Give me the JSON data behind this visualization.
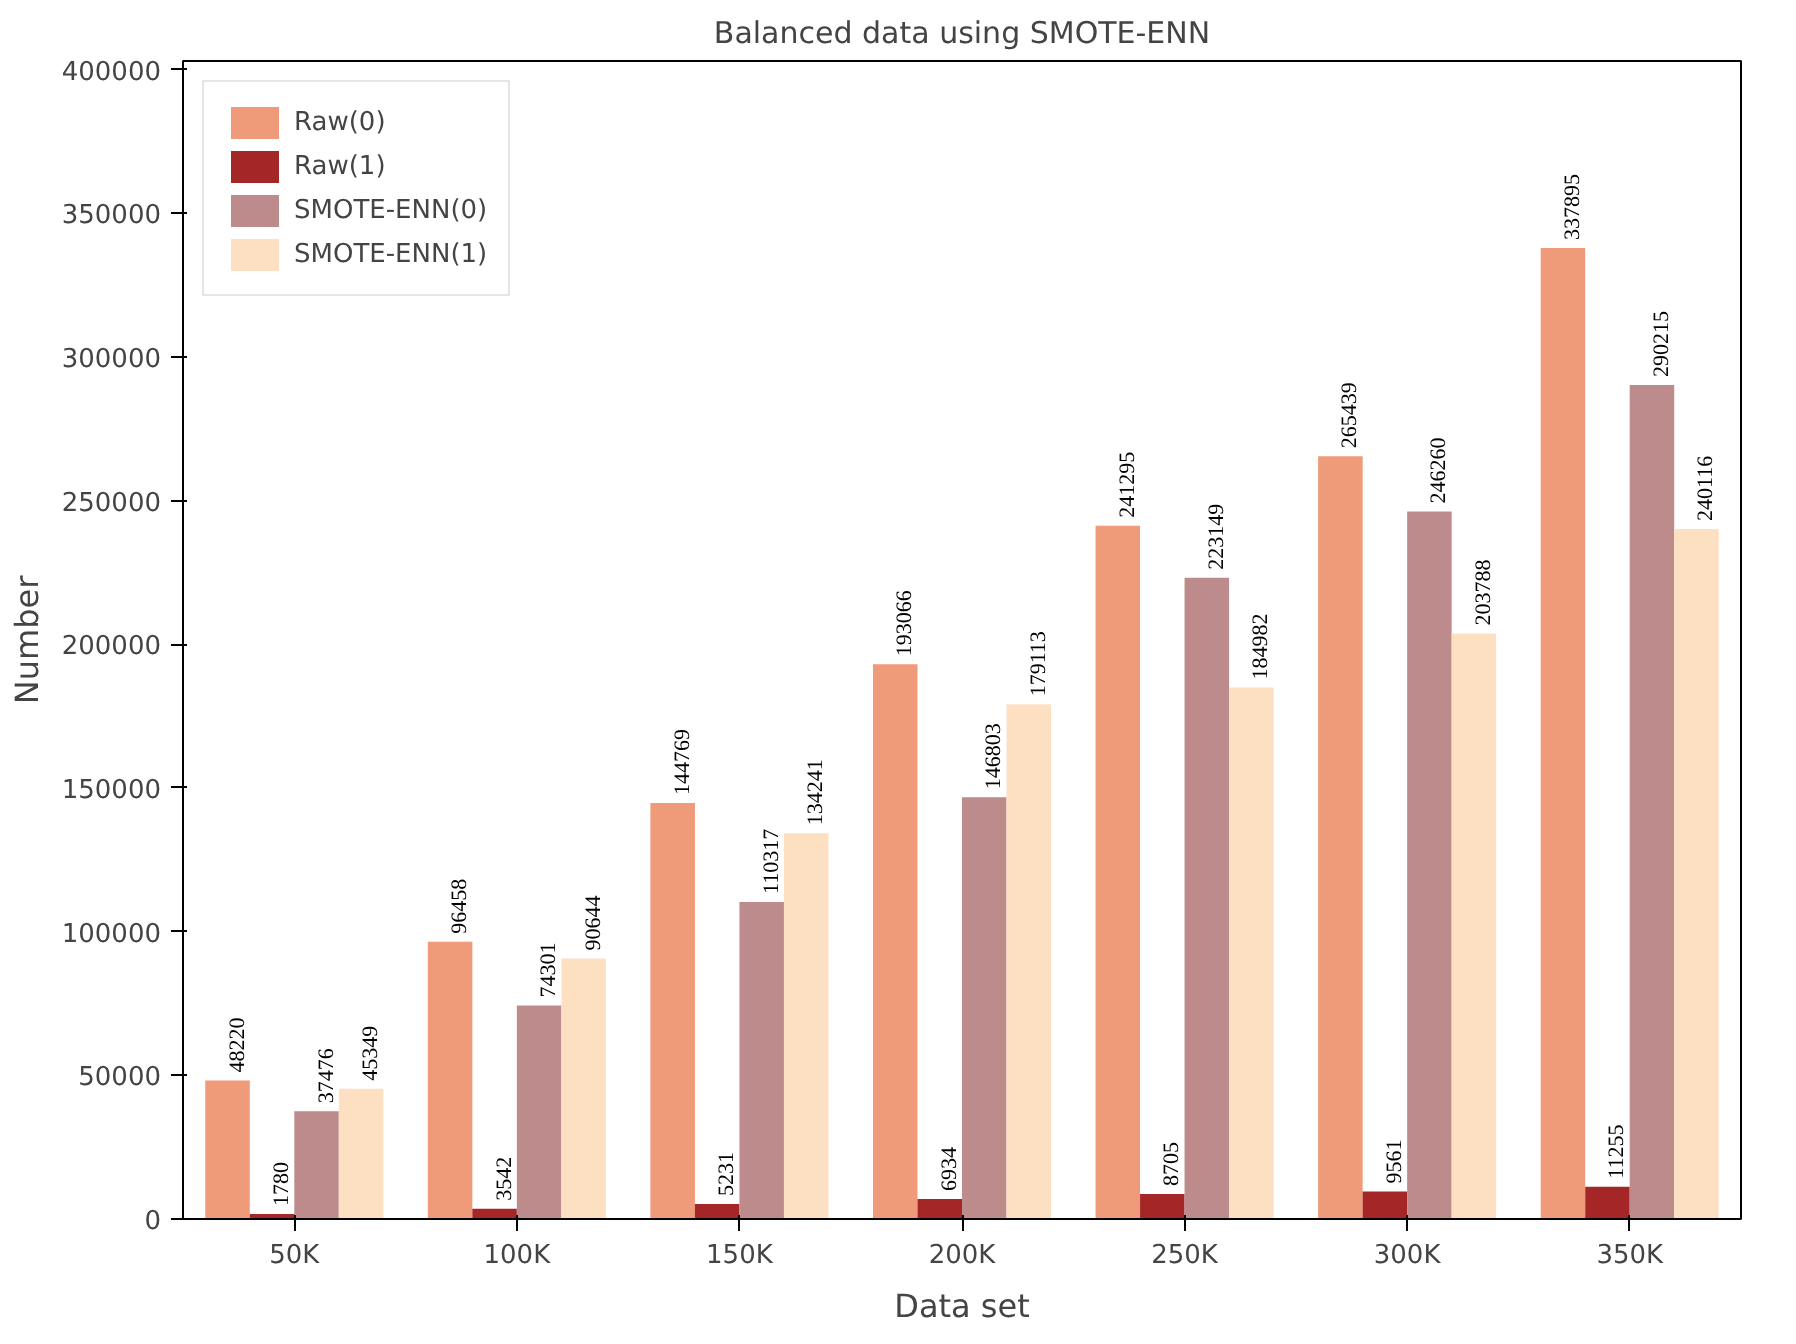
{
  "chart_data": {
    "type": "bar",
    "title": "Balanced data using SMOTE-ENN",
    "xlabel": "Data set",
    "ylabel": "Number",
    "categories": [
      "50K",
      "100K",
      "150K",
      "200K",
      "250K",
      "300K",
      "350K"
    ],
    "series": [
      {
        "name": "Raw(0)",
        "color": "#ef9a78",
        "values": [
          48220,
          96458,
          144769,
          193066,
          241295,
          265439,
          337895
        ]
      },
      {
        "name": "Raw(1)",
        "color": "#a52626",
        "values": [
          1780,
          3542,
          5231,
          6934,
          8705,
          9561,
          11255
        ]
      },
      {
        "name": "SMOTE-ENN(0)",
        "color": "#bd8b8b",
        "values": [
          37476,
          74301,
          110317,
          146803,
          223149,
          246260,
          290215
        ]
      },
      {
        "name": "SMOTE-ENN(1)",
        "color": "#fde0c2",
        "values": [
          45349,
          90644,
          134241,
          179113,
          184982,
          203788,
          240116
        ]
      }
    ],
    "ylim": [
      0,
      403000
    ],
    "yticks": [
      0,
      50000,
      100000,
      150000,
      200000,
      250000,
      300000,
      350000,
      400000
    ],
    "data_labels": true,
    "grid": false,
    "legend": "top left"
  }
}
